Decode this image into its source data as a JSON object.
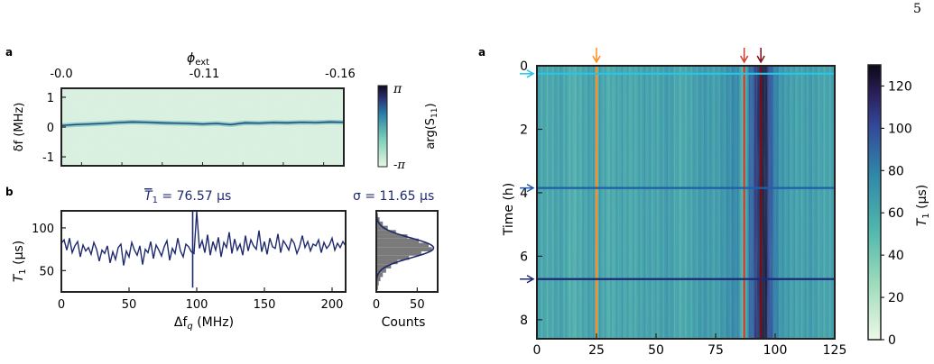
{
  "page_number": "5",
  "panels": {
    "left_top_letter": "a",
    "left_bottom_letter": "b",
    "right_letter": "a"
  },
  "colors": {
    "axis": "#222222",
    "navy": "#1f2a6e",
    "cbar_low": "#e8f6e4",
    "cbar_mid": "#3b9e9e",
    "cbar_high": "#110b1e",
    "marker_orange": "#ff8c1a",
    "marker_red": "#d43a2a",
    "marker_darkred": "#7a0d16",
    "marker_cyan": "#26c6e8",
    "marker_blue": "#1f5fa8",
    "marker_navy": "#1c2a78",
    "hist_fill": "#7a7a7a"
  },
  "chart_data": [
    {
      "id": "phase-map",
      "type": "heatmap",
      "top_axis_label": "ϕ",
      "top_axis_label_sub": "ext",
      "top_ticks": [
        "-0.0",
        "-0.11",
        "-0.16"
      ],
      "ylabel": "δf (MHz)",
      "y_ticks": [
        "1",
        "0",
        "-1"
      ],
      "ylim": [
        -1.3,
        1.3
      ],
      "colorbar_label": "arg(S",
      "colorbar_label_sub": "11",
      "colorbar_label_end": ")",
      "colorbar_ticks": [
        "π",
        "-π"
      ],
      "trace_center_mhz": [
        0.05,
        0.08,
        0.1,
        0.12,
        0.15,
        0.17,
        0.16,
        0.14,
        0.13,
        0.12,
        0.1,
        0.12,
        0.08,
        0.14,
        0.13,
        0.15,
        0.14,
        0.16,
        0.15,
        0.17,
        0.16
      ]
    },
    {
      "id": "t1-vs-detuning",
      "type": "line",
      "title": "T",
      "title_sub": "1",
      "title_value": " = 76.57 µs",
      "xlabel": "Δf",
      "xlabel_sub": "q",
      "xlabel_unit": " (MHz)",
      "ylabel": "T",
      "ylabel_sub": "1",
      "ylabel_unit": " (µs)",
      "x_ticks": [
        0,
        50,
        100,
        150,
        200
      ],
      "y_ticks": [
        50,
        100
      ],
      "xlim": [
        0,
        210
      ],
      "ylim": [
        25,
        120
      ],
      "series": [
        {
          "x": [
            0,
            2,
            4,
            6,
            8,
            10,
            12,
            14,
            16,
            18,
            20,
            22,
            24,
            26,
            28,
            30,
            32,
            34,
            36,
            38,
            40,
            42,
            44,
            46,
            48,
            50,
            52,
            54,
            56,
            58,
            60,
            62,
            64,
            66,
            68,
            70,
            72,
            74,
            76,
            78,
            80,
            82,
            84,
            86,
            88,
            90,
            92,
            94,
            96,
            98,
            100,
            102,
            104,
            106,
            108,
            110,
            112,
            114,
            116,
            118,
            120,
            122,
            124,
            126,
            128,
            130,
            132,
            134,
            136,
            138,
            140,
            142,
            144,
            146,
            148,
            150,
            152,
            154,
            156,
            158,
            160,
            162,
            164,
            166,
            168,
            170,
            172,
            174,
            176,
            178,
            180,
            182,
            184,
            186,
            188,
            190,
            192,
            194,
            196,
            198,
            200,
            202,
            204,
            206,
            208,
            210
          ],
          "values": [
            82,
            86,
            74,
            88,
            71,
            79,
            84,
            66,
            80,
            73,
            77,
            69,
            83,
            75,
            61,
            74,
            70,
            79,
            59,
            72,
            63,
            77,
            81,
            56,
            73,
            66,
            83,
            74,
            68,
            79,
            57,
            75,
            71,
            84,
            64,
            80,
            74,
            67,
            78,
            85,
            62,
            76,
            70,
            88,
            73,
            66,
            81,
            78,
            72,
            70,
            119,
            76,
            85,
            71,
            92,
            68,
            84,
            74,
            89,
            66,
            83,
            77,
            95,
            70,
            87,
            74,
            81,
            68,
            91,
            73,
            86,
            79,
            75,
            97,
            72,
            84,
            69,
            88,
            78,
            76,
            93,
            71,
            85,
            80,
            74,
            87,
            82,
            70,
            78,
            91,
            77,
            84,
            73,
            81,
            79,
            86,
            71,
            83,
            76,
            80,
            88,
            74,
            82,
            77,
            84,
            79
          ]
        }
      ]
    },
    {
      "id": "t1-histogram",
      "type": "bar",
      "title": "σ = 11.65 µs",
      "xlabel": "Counts",
      "x_ticks": [
        0,
        50
      ],
      "xlim": [
        0,
        75
      ],
      "bin_centers": [
        25,
        30,
        35,
        40,
        45,
        50,
        55,
        60,
        65,
        70,
        75,
        80,
        85,
        90,
        95,
        100,
        105,
        110,
        115,
        120
      ],
      "counts": [
        1,
        2,
        3,
        5,
        8,
        12,
        18,
        26,
        40,
        55,
        68,
        64,
        52,
        38,
        24,
        14,
        8,
        4,
        2,
        1
      ],
      "fit_peak_us": 76.57
    },
    {
      "id": "t1-time-map",
      "type": "heatmap",
      "ylabel": "Time (h)",
      "y_ticks": [
        0,
        2,
        4,
        6,
        8
      ],
      "ylim": [
        0,
        8.6
      ],
      "x_ticks": [
        0,
        25,
        50,
        75,
        100,
        125
      ],
      "xlim": [
        0,
        125
      ],
      "colorbar_label": "T",
      "colorbar_label_sub": "1",
      "colorbar_label_unit": " (µs)",
      "colorbar_ticks": [
        0,
        20,
        40,
        60,
        80,
        100,
        120
      ],
      "colorbar_range": [
        0,
        130
      ],
      "vertical_markers_x": [
        25,
        87,
        94
      ],
      "horizontal_markers_h": [
        0.25,
        3.85,
        6.72
      ],
      "column_profile": [
        [
          0,
          60
        ],
        [
          5,
          55
        ],
        [
          10,
          62
        ],
        [
          15,
          50
        ],
        [
          20,
          58
        ],
        [
          24,
          66
        ],
        [
          25,
          20
        ],
        [
          26,
          64
        ],
        [
          30,
          52
        ],
        [
          35,
          60
        ],
        [
          40,
          55
        ],
        [
          45,
          62
        ],
        [
          50,
          58
        ],
        [
          55,
          66
        ],
        [
          60,
          54
        ],
        [
          65,
          60
        ],
        [
          70,
          68
        ],
        [
          75,
          62
        ],
        [
          80,
          72
        ],
        [
          84,
          78
        ],
        [
          87,
          40
        ],
        [
          89,
          85
        ],
        [
          91,
          98
        ],
        [
          93,
          120
        ],
        [
          95,
          130
        ],
        [
          97,
          110
        ],
        [
          99,
          88
        ],
        [
          102,
          70
        ],
        [
          106,
          64
        ],
        [
          110,
          60
        ],
        [
          115,
          66
        ],
        [
          120,
          58
        ],
        [
          125,
          62
        ]
      ]
    }
  ]
}
